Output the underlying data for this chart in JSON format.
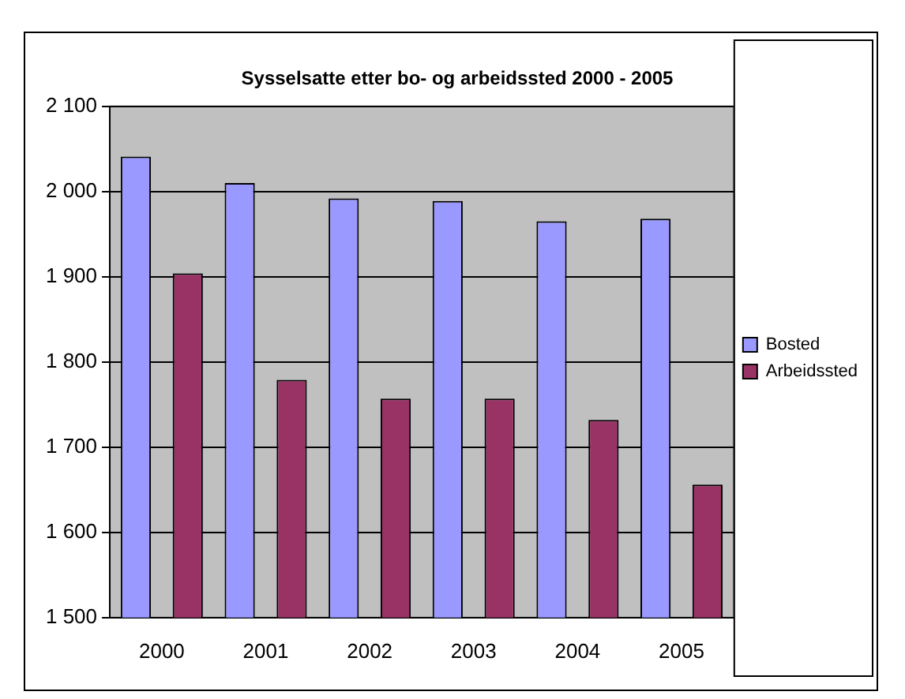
{
  "chart_data": {
    "type": "bar",
    "title": "Sysselsatte etter bo- og arbeidssted 2000 - 2005",
    "categories": [
      "2000",
      "2001",
      "2002",
      "2003",
      "2004",
      "2005"
    ],
    "series": [
      {
        "name": "Bosted",
        "color": "#9999ff",
        "values": [
          2041,
          2010,
          1992,
          1989,
          1965,
          1968
        ]
      },
      {
        "name": "Arbeidssted",
        "color": "#993366",
        "values": [
          1904,
          1779,
          1757,
          1757,
          1732,
          1656
        ]
      }
    ],
    "ylim": [
      1500,
      2100
    ],
    "yticks": [
      {
        "value": 1500,
        "label": "1 500"
      },
      {
        "value": 1600,
        "label": "1 600"
      },
      {
        "value": 1700,
        "label": "1 700"
      },
      {
        "value": 1800,
        "label": "1 800"
      },
      {
        "value": 1900,
        "label": "1 900"
      },
      {
        "value": 2000,
        "label": "2 000"
      },
      {
        "value": 2100,
        "label": "2 100"
      }
    ],
    "grid": "y",
    "legend": "right"
  }
}
